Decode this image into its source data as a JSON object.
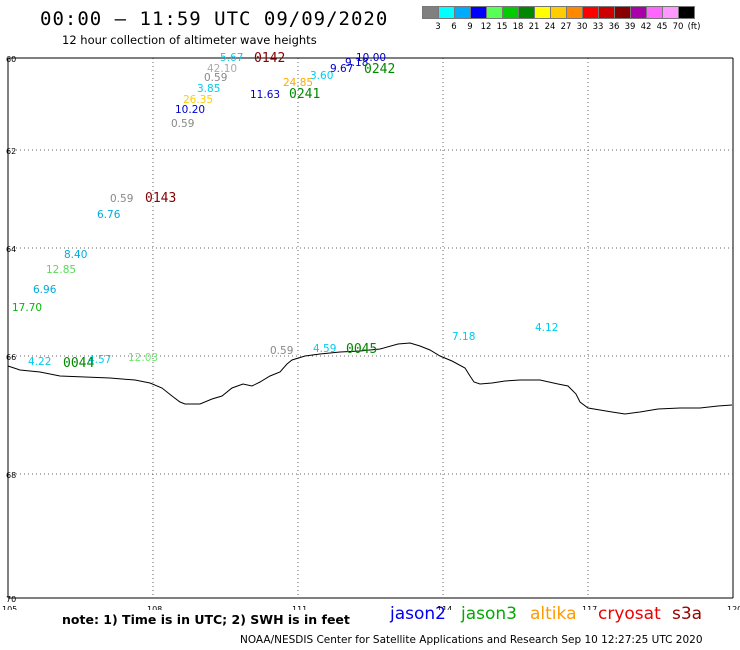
{
  "header": {
    "title": "00:00 – 11:59 UTC 09/09/2020",
    "subtitle": "12 hour collection of altimeter wave heights"
  },
  "legend": {
    "colors": [
      "#808080",
      "#00ffff",
      "#00aaff",
      "#0000ff",
      "#55ff55",
      "#00cc00",
      "#008800",
      "#ffff00",
      "#ffcc00",
      "#ff8800",
      "#ff0000",
      "#cc0000",
      "#880000",
      "#aa00aa",
      "#ff66ff",
      "#ff99ff",
      "#000000"
    ],
    "labels": [
      "3",
      "6",
      "9",
      "12",
      "15",
      "18",
      "21",
      "24",
      "27",
      "30",
      "33",
      "36",
      "39",
      "42",
      "45",
      "70",
      "(ft)"
    ]
  },
  "map": {
    "lat_labels": [
      "60",
      "62",
      "64",
      "66",
      "68",
      "70"
    ],
    "lon_labels": [
      "105",
      "108",
      "111",
      "114",
      "117",
      "120"
    ],
    "wave_heights": [
      {
        "text": "5.67",
        "color": "#00ccee"
      },
      {
        "text": "42.10",
        "color": "#aaaaaa"
      },
      {
        "text": "0.59",
        "color": "#888888"
      },
      {
        "text": "3.85",
        "color": "#00ccee"
      },
      {
        "text": "26.35",
        "color": "#ffcc00"
      },
      {
        "text": "10.20",
        "color": "#0000cc"
      },
      {
        "text": "0.59",
        "color": "#888888"
      },
      {
        "text": "11.63",
        "color": "#0000cc"
      },
      {
        "text": "24.85",
        "color": "#ffaa00"
      },
      {
        "text": "3.60",
        "color": "#00ccee"
      },
      {
        "text": "9.67",
        "color": "#0000cc"
      },
      {
        "text": "9.18",
        "color": "#0000cc"
      },
      {
        "text": "10.00",
        "color": "#0000cc"
      },
      {
        "text": "0.59",
        "color": "#888888"
      },
      {
        "text": "6.76",
        "color": "#00aadd"
      },
      {
        "text": "8.40",
        "color": "#00aadd"
      },
      {
        "text": "12.85",
        "color": "#55dd55"
      },
      {
        "text": "6.96",
        "color": "#00aadd"
      },
      {
        "text": "17.70",
        "color": "#00bb00"
      },
      {
        "text": "4.22",
        "color": "#00ccee"
      },
      {
        "text": "4.57",
        "color": "#00ccee"
      },
      {
        "text": "12.03",
        "color": "#66ee66"
      },
      {
        "text": "0.59",
        "color": "#888888"
      },
      {
        "text": "4.59",
        "color": "#00ccee"
      },
      {
        "text": "7.18",
        "color": "#00ccee"
      },
      {
        "text": "4.12",
        "color": "#00ccee"
      }
    ],
    "time_labels": [
      {
        "text": "0142",
        "color": "#880000"
      },
      {
        "text": "0241",
        "color": "#008800"
      },
      {
        "text": "0242",
        "color": "#008800"
      },
      {
        "text": "0143",
        "color": "#880000"
      },
      {
        "text": "0044",
        "color": "#008800"
      },
      {
        "text": "0045",
        "color": "#008800"
      }
    ]
  },
  "footer": {
    "note": "note:  1) Time is in UTC;  2) SWH is in feet",
    "satellites": [
      {
        "name": "jason2",
        "color": "#0000ee"
      },
      {
        "name": "jason3",
        "color": "#00aa00"
      },
      {
        "name": "altika",
        "color": "#ff9900"
      },
      {
        "name": "cryosat",
        "color": "#ee0000"
      },
      {
        "name": "s3a",
        "color": "#990000"
      }
    ],
    "credit": "NOAA/NESDIS Center for Satellite Applications and Research    Sep 10 12:27:25 UTC 2020"
  }
}
